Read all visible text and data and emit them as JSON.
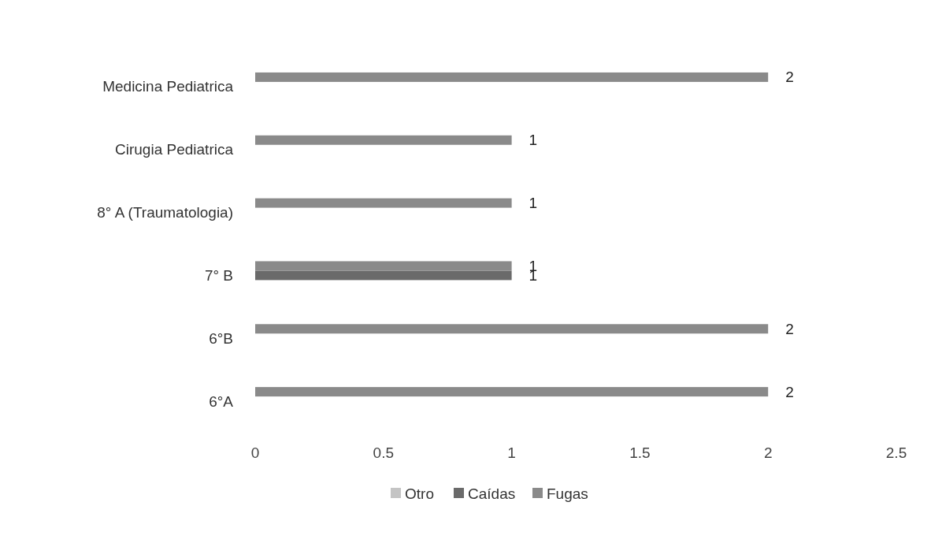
{
  "chart_data": {
    "type": "bar",
    "orientation": "horizontal",
    "categories": [
      "Medicina Pediatrica",
      "Cirugia Pediatrica",
      "8° A (Traumatologia)",
      "7° B",
      "6°B",
      "6°A"
    ],
    "series": [
      {
        "name": "Otro",
        "color": "#c4c4c4",
        "values": [
          null,
          null,
          null,
          null,
          null,
          null
        ]
      },
      {
        "name": "Caídas",
        "color": "#6a6a6a",
        "values": [
          null,
          null,
          null,
          1,
          null,
          null
        ]
      },
      {
        "name": "Fugas",
        "color": "#8a8a8a",
        "values": [
          2,
          1,
          1,
          1,
          2,
          2
        ]
      }
    ],
    "xlim": [
      0,
      2.5
    ],
    "xticks": [
      0,
      0.5,
      1,
      1.5,
      2,
      2.5
    ],
    "data_labels": true,
    "legend": "bottom",
    "grid": false
  }
}
